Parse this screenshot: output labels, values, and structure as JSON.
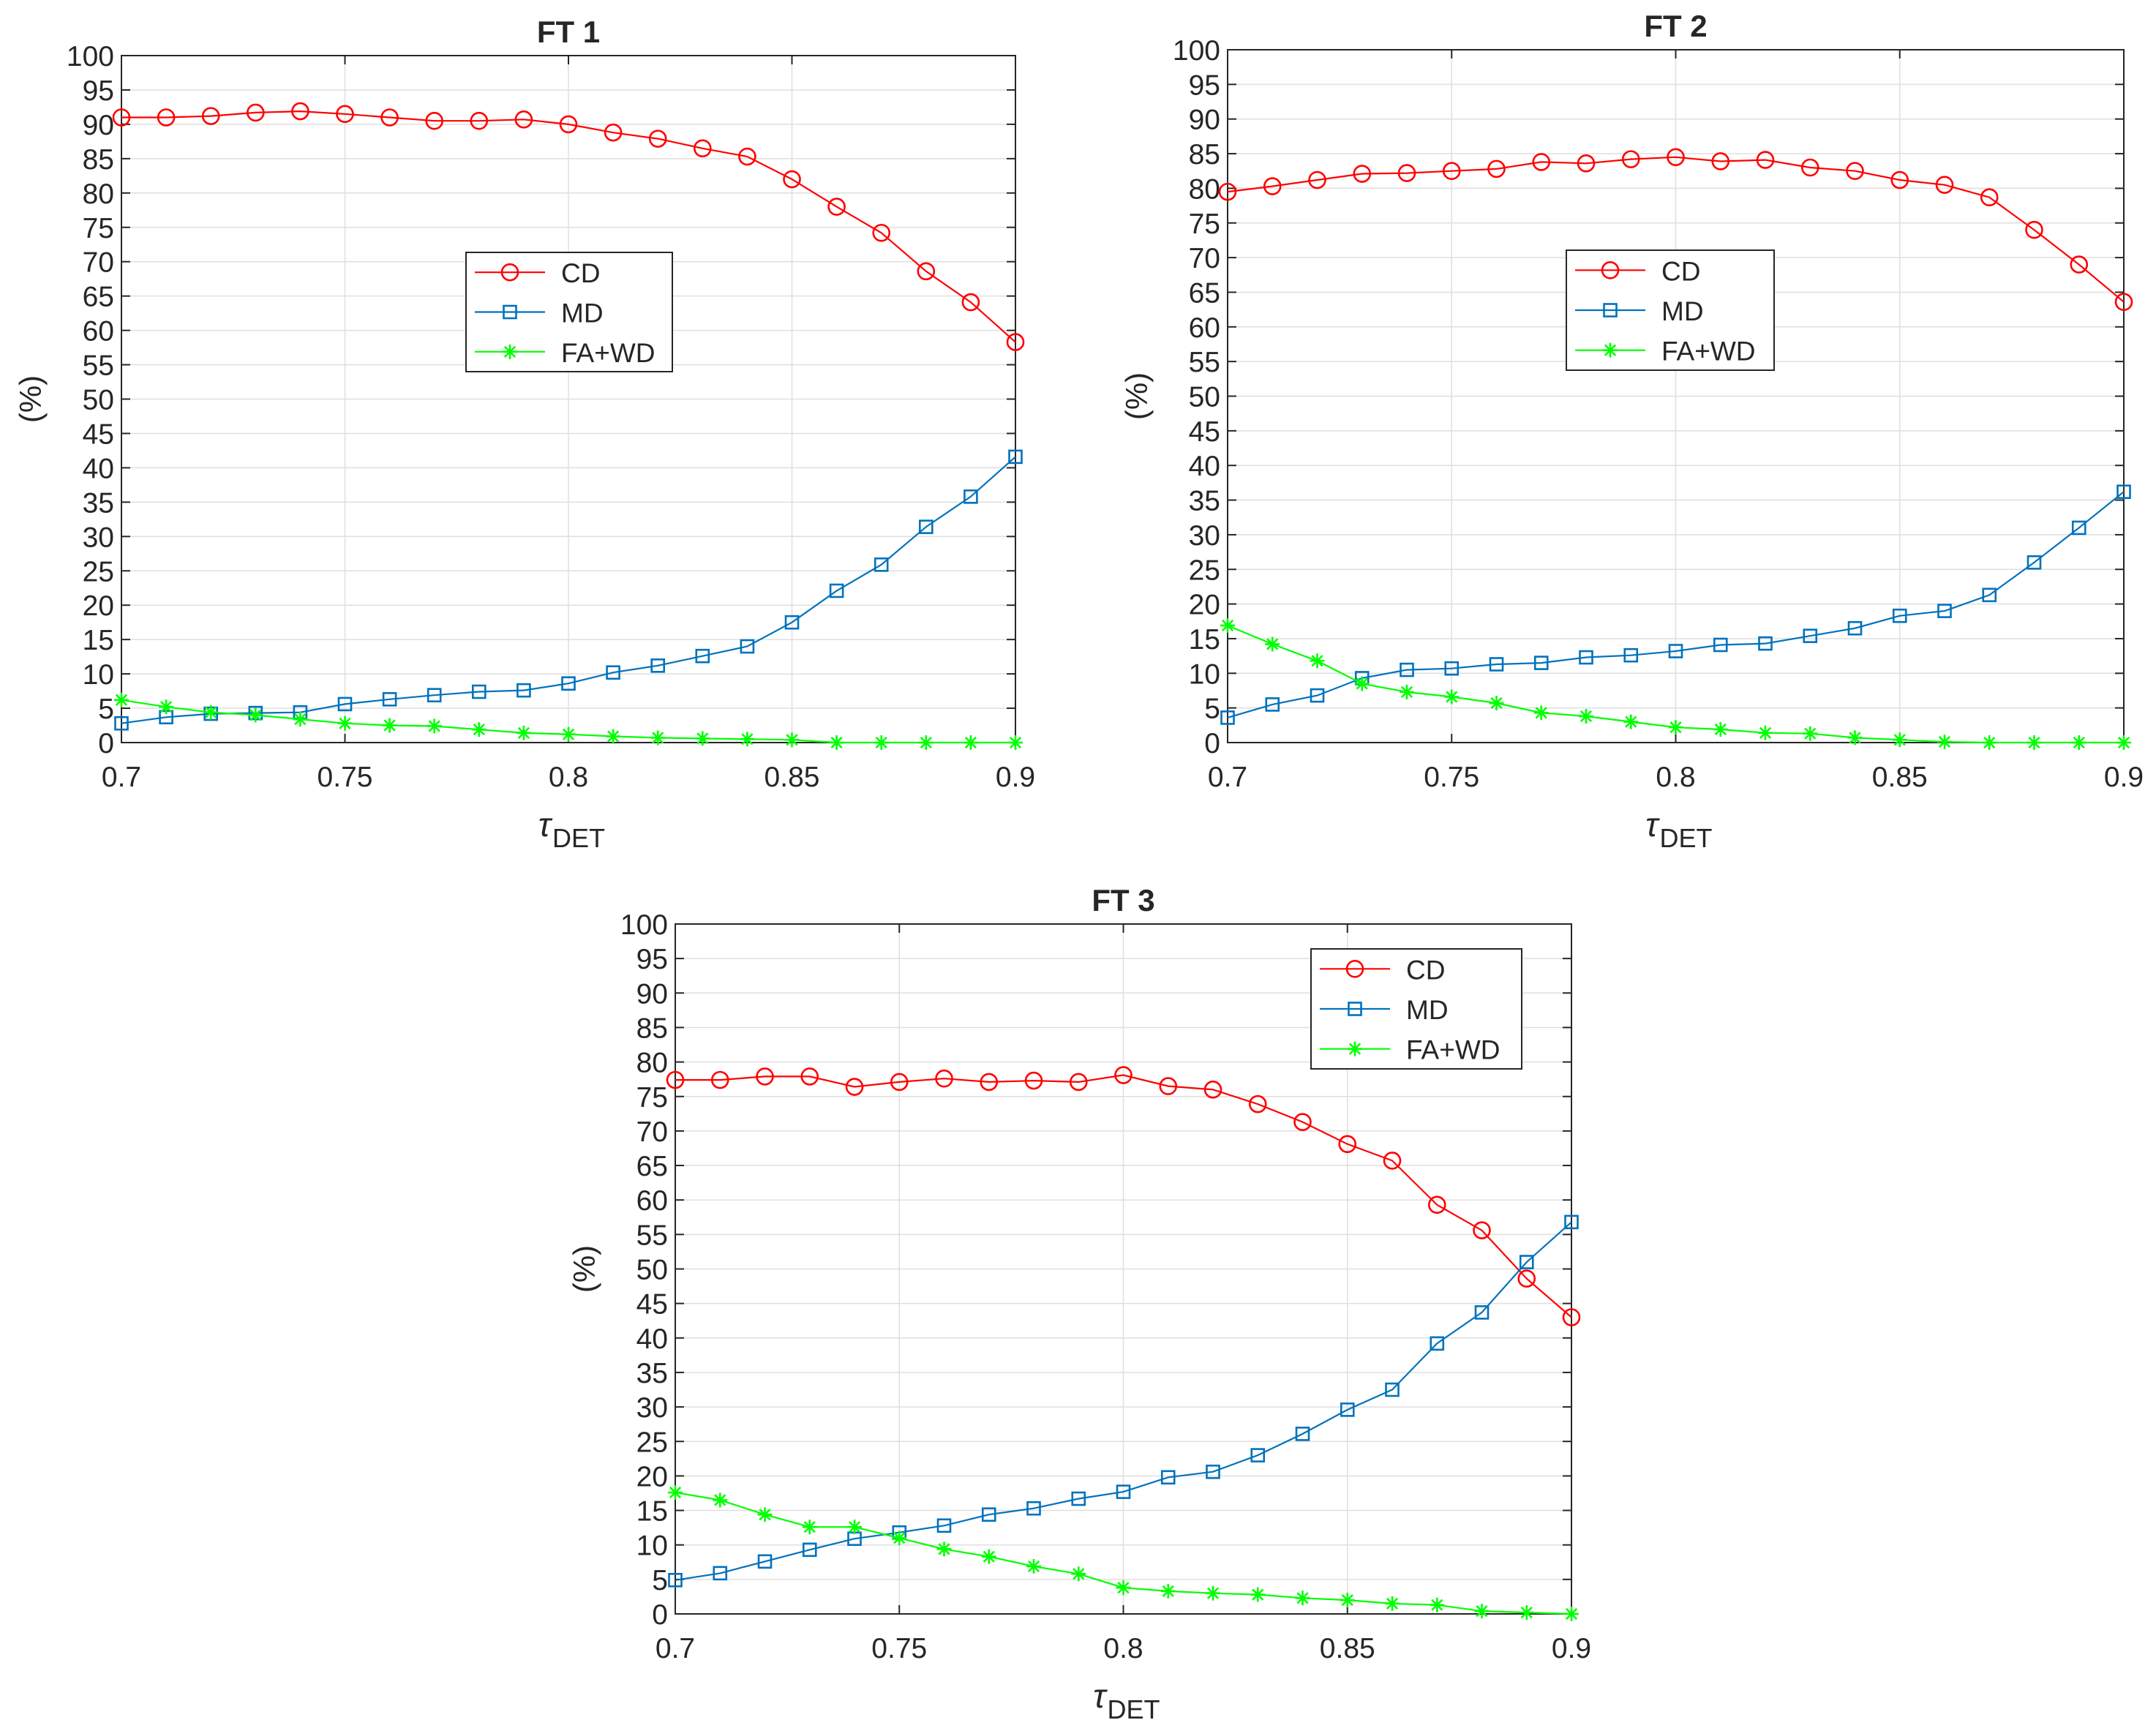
{
  "chart_data": [
    {
      "type": "line",
      "title": "FT 1",
      "xlabel_symbol": "τ",
      "xlabel_sub": "DET",
      "ylabel": "(%)",
      "xlim": [
        0.7,
        0.9
      ],
      "ylim": [
        0,
        100
      ],
      "xticks": [
        "0.7",
        "0.75",
        "0.8",
        "0.85",
        "0.9"
      ],
      "yticks": [
        "0",
        "5",
        "10",
        "15",
        "20",
        "25",
        "30",
        "35",
        "40",
        "45",
        "50",
        "55",
        "60",
        "65",
        "70",
        "75",
        "80",
        "85",
        "90",
        "95",
        "100"
      ],
      "grid": true,
      "legend_position": "upper-middle",
      "x": [
        0.7,
        0.71,
        0.72,
        0.73,
        0.74,
        0.75,
        0.76,
        0.77,
        0.78,
        0.79,
        0.8,
        0.81,
        0.82,
        0.83,
        0.84,
        0.85,
        0.86,
        0.87,
        0.88,
        0.89,
        0.9
      ],
      "series": [
        {
          "name": "CD",
          "color": "#ff0000",
          "marker": "circle",
          "values": [
            91,
            91,
            91.2,
            91.7,
            91.9,
            91.5,
            91,
            90.5,
            90.5,
            90.7,
            90,
            88.8,
            87.9,
            86.5,
            85.3,
            82,
            78,
            74.2,
            68.6,
            64.1,
            58.3
          ]
        },
        {
          "name": "MD",
          "color": "#0072bd",
          "marker": "square",
          "values": [
            2.8,
            3.7,
            4.2,
            4.3,
            4.4,
            5.6,
            6.3,
            6.9,
            7.4,
            7.6,
            8.6,
            10.2,
            11.2,
            12.6,
            14,
            17.5,
            22.1,
            25.9,
            31.4,
            35.8,
            41.6
          ]
        },
        {
          "name": "FA+WD",
          "color": "#00ff00",
          "marker": "asterisk",
          "values": [
            6.2,
            5.2,
            4.4,
            4,
            3.4,
            2.8,
            2.5,
            2.4,
            1.9,
            1.4,
            1.2,
            0.9,
            0.7,
            0.6,
            0.5,
            0.4,
            0,
            0,
            0,
            0,
            0
          ]
        }
      ]
    },
    {
      "type": "line",
      "title": "FT 2",
      "xlabel_symbol": "τ",
      "xlabel_sub": "DET",
      "ylabel": "(%)",
      "xlim": [
        0.7,
        0.9
      ],
      "ylim": [
        0,
        100
      ],
      "xticks": [
        "0.7",
        "0.75",
        "0.8",
        "0.85",
        "0.9"
      ],
      "yticks": [
        "0",
        "5",
        "10",
        "15",
        "20",
        "25",
        "30",
        "35",
        "40",
        "45",
        "50",
        "55",
        "60",
        "65",
        "70",
        "75",
        "80",
        "85",
        "90",
        "95",
        "100"
      ],
      "grid": true,
      "legend_position": "upper-middle",
      "x": [
        0.7,
        0.71,
        0.72,
        0.73,
        0.74,
        0.75,
        0.76,
        0.77,
        0.78,
        0.79,
        0.8,
        0.81,
        0.82,
        0.83,
        0.84,
        0.85,
        0.86,
        0.87,
        0.88,
        0.89,
        0.9
      ],
      "series": [
        {
          "name": "CD",
          "color": "#ff0000",
          "marker": "circle",
          "values": [
            79.5,
            80.3,
            81.2,
            82.1,
            82.2,
            82.5,
            82.8,
            83.8,
            83.6,
            84.2,
            84.5,
            83.9,
            84.1,
            83,
            82.5,
            81.2,
            80.5,
            78.7,
            74,
            69,
            63.6
          ]
        },
        {
          "name": "MD",
          "color": "#0072bd",
          "marker": "square",
          "values": [
            3.6,
            5.5,
            6.8,
            9.3,
            10.5,
            10.7,
            11.3,
            11.5,
            12.3,
            12.6,
            13.2,
            14.1,
            14.3,
            15.4,
            16.5,
            18.3,
            19,
            21.3,
            26,
            31,
            36.2
          ]
        },
        {
          "name": "FA+WD",
          "color": "#00ff00",
          "marker": "asterisk",
          "values": [
            16.9,
            14.2,
            11.8,
            8.5,
            7.3,
            6.6,
            5.7,
            4.3,
            3.8,
            3.0,
            2.2,
            1.9,
            1.4,
            1.3,
            0.7,
            0.4,
            0.1,
            0,
            0,
            0,
            0
          ]
        }
      ]
    },
    {
      "type": "line",
      "title": "FT 3",
      "xlabel_symbol": "τ",
      "xlabel_sub": "DET",
      "ylabel": "(%)",
      "xlim": [
        0.7,
        0.9
      ],
      "ylim": [
        0,
        100
      ],
      "xticks": [
        "0.7",
        "0.75",
        "0.8",
        "0.85",
        "0.9"
      ],
      "yticks": [
        "0",
        "5",
        "10",
        "15",
        "20",
        "25",
        "30",
        "35",
        "40",
        "45",
        "50",
        "55",
        "60",
        "65",
        "70",
        "75",
        "80",
        "85",
        "90",
        "95",
        "100"
      ],
      "grid": true,
      "legend_position": "top-right",
      "x": [
        0.7,
        0.71,
        0.72,
        0.73,
        0.74,
        0.75,
        0.76,
        0.77,
        0.78,
        0.79,
        0.8,
        0.81,
        0.82,
        0.83,
        0.84,
        0.85,
        0.86,
        0.87,
        0.88,
        0.89,
        0.9
      ],
      "series": [
        {
          "name": "CD",
          "color": "#ff0000",
          "marker": "circle",
          "values": [
            77.4,
            77.4,
            77.9,
            77.9,
            76.4,
            77.1,
            77.6,
            77.1,
            77.3,
            77.1,
            78.1,
            76.5,
            76,
            73.9,
            71.3,
            68.1,
            65.7,
            59.3,
            55.6,
            48.6,
            43
          ]
        },
        {
          "name": "MD",
          "color": "#0072bd",
          "marker": "square",
          "values": [
            4.9,
            5.9,
            7.6,
            9.3,
            10.9,
            11.8,
            12.8,
            14.4,
            15.3,
            16.7,
            17.7,
            19.8,
            20.6,
            23,
            26.1,
            29.6,
            32.5,
            39.2,
            43.7,
            51,
            56.8
          ]
        },
        {
          "name": "FA+WD",
          "color": "#00ff00",
          "marker": "asterisk",
          "values": [
            17.6,
            16.5,
            14.4,
            12.6,
            12.6,
            11,
            9.4,
            8.3,
            6.9,
            5.8,
            3.8,
            3.3,
            3.0,
            2.8,
            2.3,
            2.0,
            1.5,
            1.3,
            0.4,
            0.2,
            0
          ]
        }
      ]
    }
  ]
}
